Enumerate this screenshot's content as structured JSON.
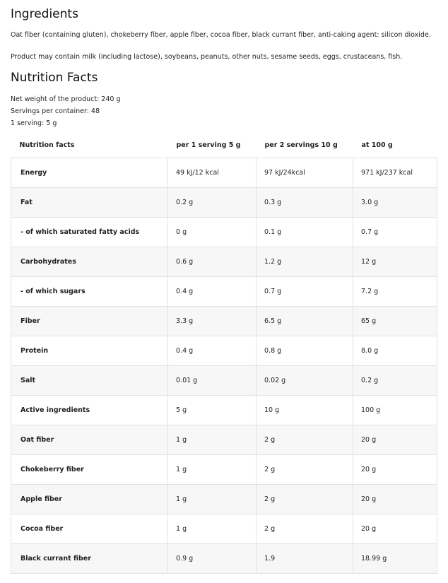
{
  "ingredients": {
    "title": "Ingredients",
    "paragraphs": [
      "Oat fiber (containing gluten), chokeberry fiber, apple fiber, cocoa fiber, black currant fiber, anti-caking agent: silicon dioxide.",
      "Product may contain milk (including lactose), soybeans, peanuts, other nuts, sesame seeds, eggs, crustaceans, fish."
    ]
  },
  "nutrition": {
    "title": "Nutrition Facts",
    "info": [
      "Net weight of the product: 240 g",
      "Servings per container: 48",
      "1 serving: 5 g"
    ]
  },
  "table": {
    "header": [
      "Nutrition facts",
      "per 1 serving 5 g",
      "per 2 servings 10 g",
      "at 100 g"
    ],
    "rows": [
      [
        "Energy",
        "49 kJ/12 kcal",
        "97 kJ/24kcal",
        "971 kJ/237 kcal"
      ],
      [
        "Fat",
        "0.2 g",
        "0.3 g",
        "3.0 g"
      ],
      [
        "- of which saturated fatty acids",
        "0 g",
        "0.1 g",
        "0.7 g"
      ],
      [
        "Carbohydrates",
        "0.6 g",
        "1.2 g",
        "12 g"
      ],
      [
        "- of which sugars",
        "0.4 g",
        "0.7 g",
        "7.2 g"
      ],
      [
        "Fiber",
        "3.3 g",
        "6.5 g",
        "65 g"
      ],
      [
        "Protein",
        "0.4 g",
        "0.8 g",
        "8.0 g"
      ],
      [
        "Salt",
        "0.01 g",
        "0.02 g",
        "0.2 g"
      ],
      [
        "Active ingredients",
        "5 g",
        "10 g",
        "100 g"
      ],
      [
        "Oat fiber",
        "1 g",
        "2 g",
        "20 g"
      ],
      [
        "Chokeberry fiber",
        "1 g",
        "2 g",
        "20 g"
      ],
      [
        "Apple fiber",
        "1 g",
        "2 g",
        "20 g"
      ],
      [
        "Cocoa fiber",
        "1 g",
        "2 g",
        "20 g"
      ],
      [
        "Black currant fiber",
        "0.9 g",
        "1.9",
        "18.99 g"
      ]
    ]
  }
}
